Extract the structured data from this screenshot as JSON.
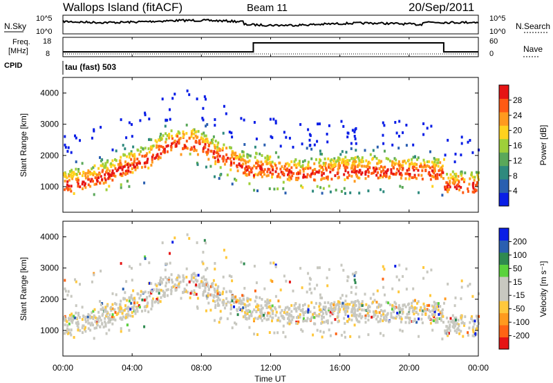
{
  "header": {
    "station": "Wallops Island (fitACF)",
    "beam": "Beam 11",
    "date": "20/Sep/2011"
  },
  "top_panels": {
    "nsky_label": "N.Sky",
    "nsky_ticks": [
      "10^5",
      "10^0"
    ],
    "nsearch_label": "N.Search",
    "nsearch_ticks": [
      "10^5",
      "10^0"
    ],
    "freq_label_1": "Freq.",
    "freq_label_2": "[MHz]",
    "freq_ticks": [
      "18",
      "8"
    ],
    "nave_label": "Nave",
    "nave_ticks": [
      "60",
      "0"
    ],
    "cpid_label": "CPID",
    "cpid_value": "tau (fast) 503",
    "freq_step": {
      "high_from": "11:00",
      "high_to": "22:00"
    }
  },
  "colors": {
    "power_scale": [
      "#0a1ee6",
      "#2a5fb0",
      "#2f8a7e",
      "#5aa85a",
      "#9ecf3a",
      "#ffd21e",
      "#ff9a1e",
      "#ff5a14",
      "#e61414"
    ],
    "velocity_scale": [
      "#e61414",
      "#ff6414",
      "#ff9a1e",
      "#ffc83c",
      "#c8c8c0",
      "#c8c8c0",
      "#5ad23c",
      "#2f8a50",
      "#2a5fb0",
      "#0a1ee6"
    ]
  },
  "chart_data": [
    {
      "type": "heatmap",
      "name": "power",
      "xlabel": "",
      "ylabel": "Slant Range [km]",
      "x_range": [
        "00:00",
        "24:00"
      ],
      "ylim": [
        180,
        4500
      ],
      "y_ticks": [
        "1000",
        "2000",
        "3000",
        "4000"
      ],
      "colorbar_label": "Power [dB]",
      "colorbar_ticks": [
        "4",
        "8",
        "12",
        "16",
        "20",
        "24",
        "28"
      ],
      "colorbar_range": [
        0,
        30
      ]
    },
    {
      "type": "heatmap",
      "name": "velocity",
      "xlabel": "Time UT",
      "ylabel": "Slant Range [km]",
      "x_range": [
        "00:00",
        "24:00"
      ],
      "x_ticks": [
        "00:00",
        "04:00",
        "08:00",
        "12:00",
        "16:00",
        "20:00",
        "00:00"
      ],
      "ylim": [
        180,
        4500
      ],
      "y_ticks": [
        "1000",
        "2000",
        "3000",
        "4000"
      ],
      "colorbar_label": "Velocity [m s⁻¹]",
      "colorbar_ticks": [
        "200",
        "100",
        "50",
        "15",
        "-15",
        "-50",
        "-100",
        "-200"
      ]
    }
  ]
}
